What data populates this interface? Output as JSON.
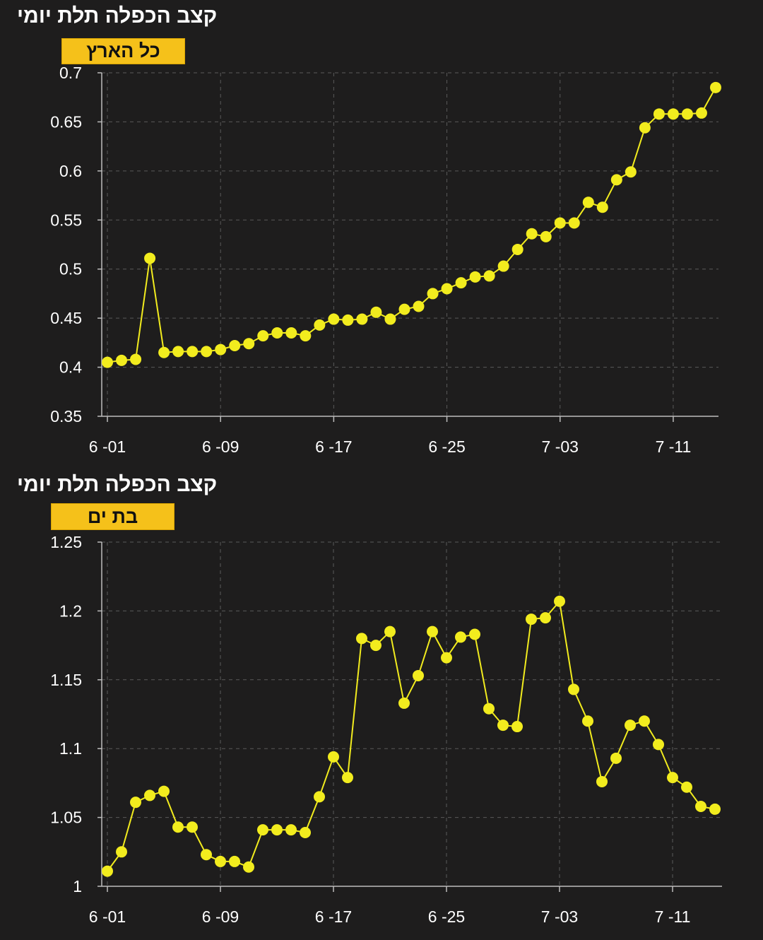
{
  "charts": [
    {
      "title": "קצב הכפלה תלת יומי",
      "region": "כל הארץ"
    },
    {
      "title": "קצב הכפלה תלת יומי",
      "region": "בת ים"
    }
  ],
  "colors": {
    "background": "#1e1d1d",
    "line": "#f2ec1e",
    "badge": "#f5c11a",
    "grid": "#5a5a5a",
    "axis": "#bdbdbd"
  },
  "chart_data": [
    {
      "type": "line",
      "title": "קצב הכפלה תלת יומי",
      "subtitle": "כל הארץ",
      "xlabel": "",
      "ylabel": "",
      "x_ticks": [
        "6 -01",
        "6 -09",
        "6 -17",
        "6 -25",
        "7 -03",
        "7 -11"
      ],
      "x_tick_day_index": [
        0,
        8,
        16,
        24,
        32,
        40
      ],
      "x_range_days": [
        -0.4,
        43.2
      ],
      "y_ticks": [
        0.35,
        0.4,
        0.45,
        0.5,
        0.55,
        0.6,
        0.65,
        0.7
      ],
      "ylim": [
        0.35,
        0.7
      ],
      "grid": true,
      "series": [
        {
          "values": [
            0.405,
            0.407,
            0.408,
            0.511,
            0.415,
            0.416,
            0.416,
            0.416,
            0.418,
            0.422,
            0.424,
            0.432,
            0.435,
            0.435,
            0.432,
            0.443,
            0.449,
            0.448,
            0.449,
            0.456,
            0.449,
            0.459,
            0.462,
            0.475,
            0.48,
            0.486,
            0.492,
            0.493,
            0.503,
            0.52,
            0.536,
            0.533,
            0.547,
            0.547,
            0.568,
            0.563,
            0.591,
            0.599,
            0.644,
            0.658,
            0.658,
            0.658,
            0.659,
            0.685
          ]
        }
      ]
    },
    {
      "type": "line",
      "title": "קצב הכפלה תלת יומי",
      "subtitle": "בת ים",
      "xlabel": "",
      "ylabel": "",
      "x_ticks": [
        "6 -01",
        "6 -09",
        "6 -17",
        "6 -25",
        "7 -03",
        "7 -11"
      ],
      "x_tick_day_index": [
        0,
        8,
        16,
        24,
        32,
        40
      ],
      "x_range_days": [
        -0.4,
        43.5
      ],
      "y_ticks": [
        1,
        1.05,
        1.1,
        1.15,
        1.2,
        1.25
      ],
      "ylim": [
        1,
        1.25
      ],
      "grid": true,
      "series": [
        {
          "values": [
            1.011,
            1.025,
            1.061,
            1.066,
            1.069,
            1.043,
            1.043,
            1.023,
            1.018,
            1.018,
            1.014,
            1.041,
            1.041,
            1.041,
            1.039,
            1.065,
            1.094,
            1.079,
            1.18,
            1.175,
            1.185,
            1.133,
            1.153,
            1.185,
            1.166,
            1.181,
            1.183,
            1.129,
            1.117,
            1.116,
            1.194,
            1.195,
            1.207,
            1.143,
            1.12,
            1.076,
            1.093,
            1.117,
            1.12,
            1.103,
            1.079,
            1.072,
            1.058,
            1.056
          ]
        }
      ]
    }
  ]
}
